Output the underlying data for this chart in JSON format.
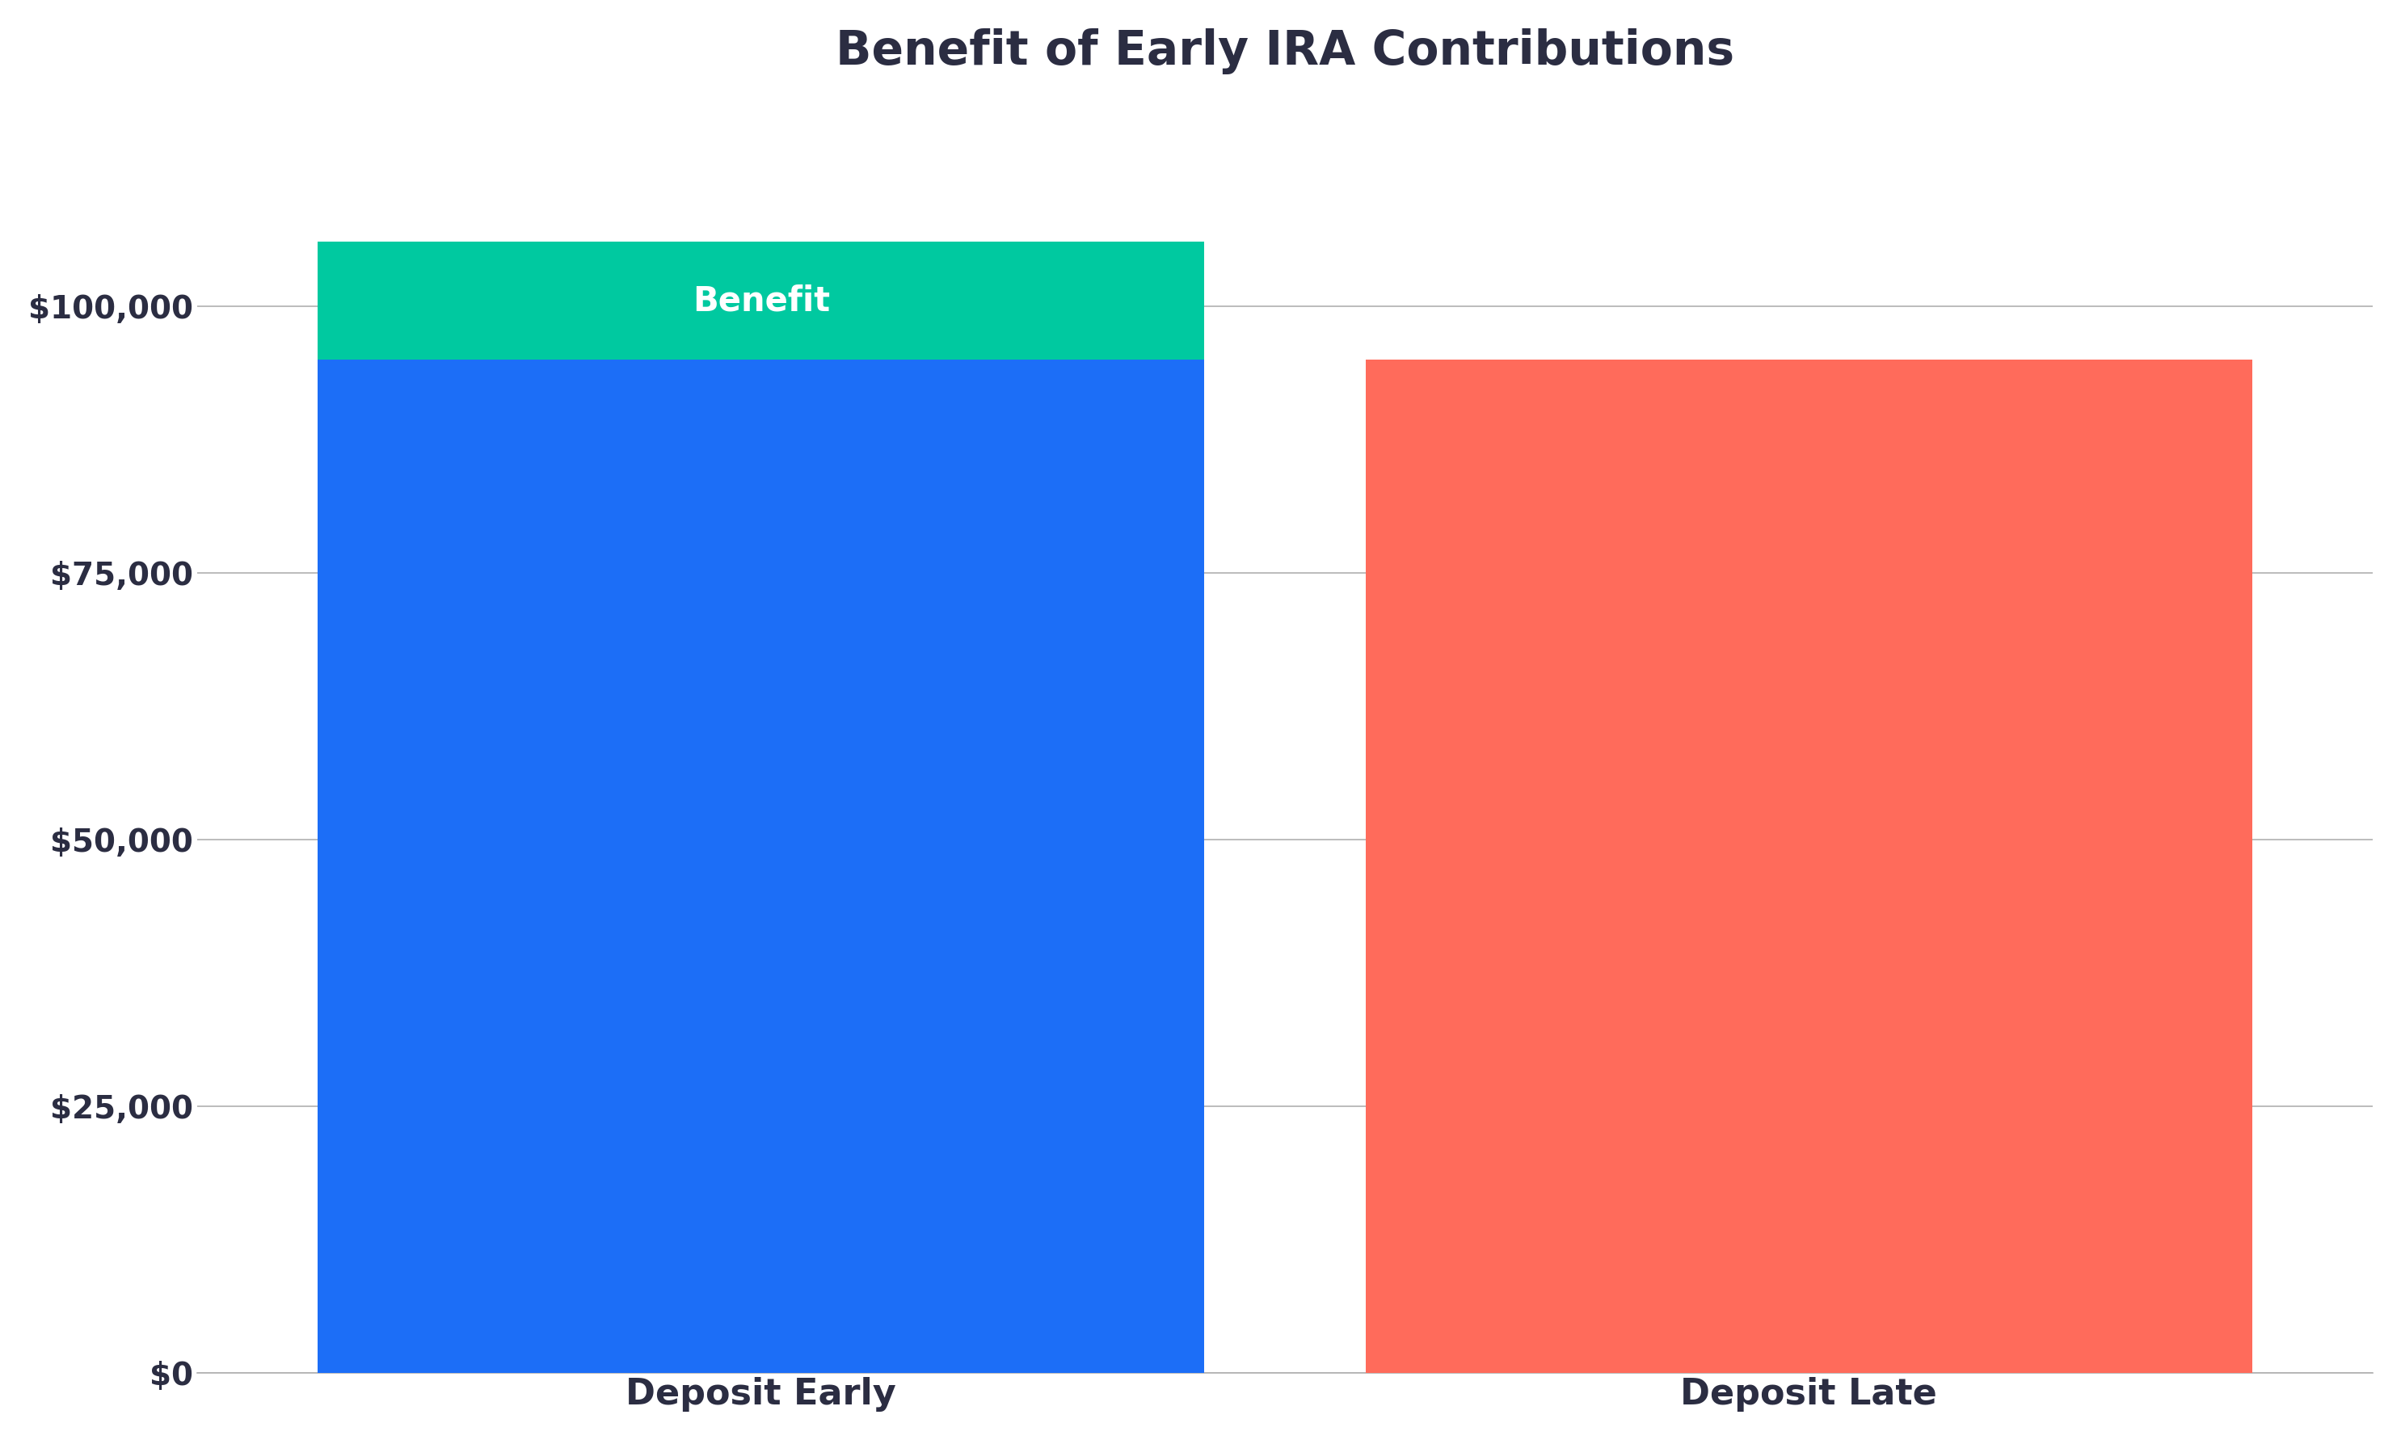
{
  "title": "Benefit of Early IRA Contributions",
  "categories": [
    "Deposit Early",
    "Deposit Late"
  ],
  "bar_base_value": 95000,
  "bar_extra_value": 11000,
  "bar_late_value": 95000,
  "bar_colors": [
    "#1c6ef7",
    "#ff6b5b"
  ],
  "benefit_color": "#00c9a0",
  "benefit_label": "Benefit",
  "benefit_label_color": "#ffffff",
  "title_color": "#2b2d42",
  "axis_label_color": "#2b2d42",
  "tick_label_color": "#2b2d42",
  "background_color": "#ffffff",
  "grid_color": "#b0b0b0",
  "ylim": [
    0,
    120000
  ],
  "yticks": [
    0,
    25000,
    50000,
    75000,
    100000
  ],
  "ytick_labels": [
    "$0",
    "$25,000",
    "$50,000",
    "$75,000",
    "$100,000"
  ],
  "bar_width": 0.55,
  "x_positions": [
    0.35,
    1.0
  ],
  "xlim": [
    0.0,
    1.35
  ],
  "title_fontsize": 42,
  "tick_fontsize": 28,
  "xlabel_fontsize": 32,
  "benefit_label_fontsize": 30
}
